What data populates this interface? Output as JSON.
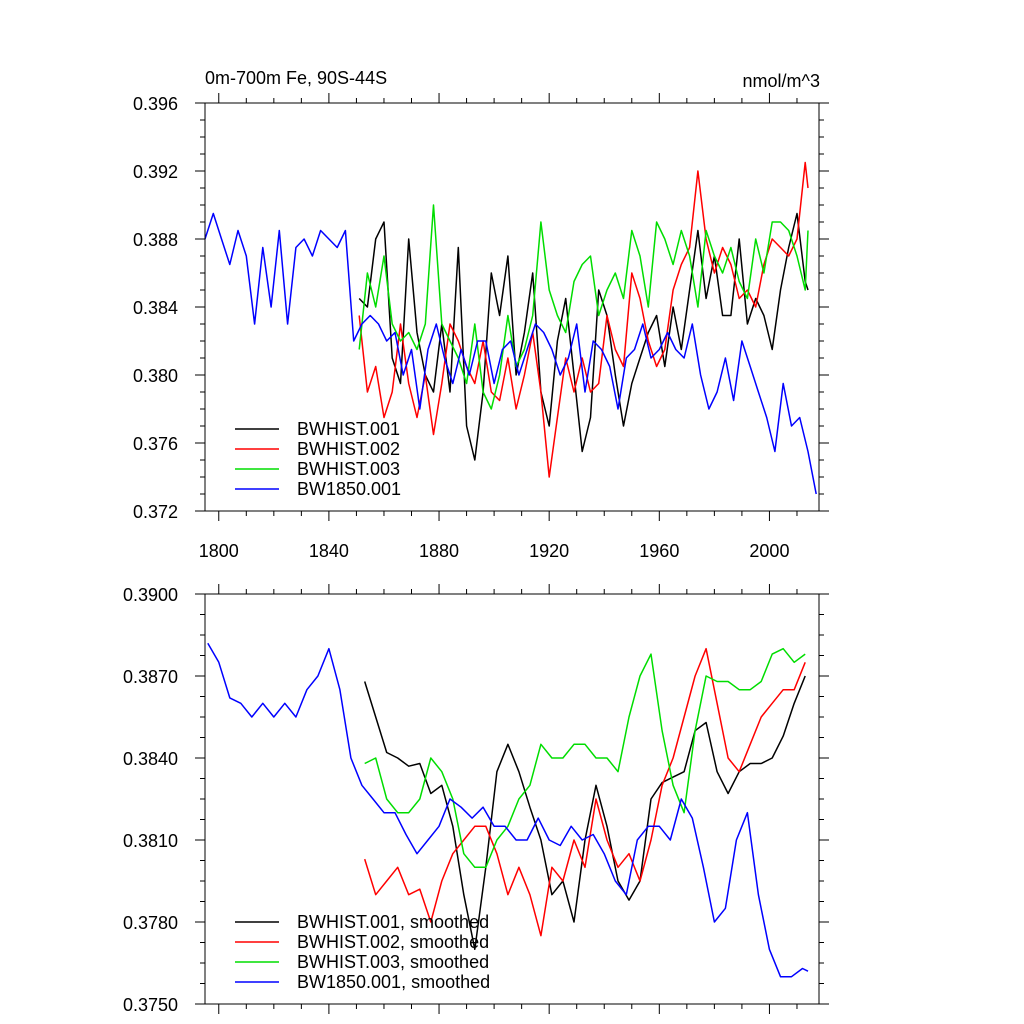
{
  "chart_data": [
    {
      "type": "line",
      "title_left": "0m-700m Fe, 90S-44S",
      "title_right": "nmol/m^3",
      "xlim": [
        1795,
        2018
      ],
      "ylim": [
        0.372,
        0.396
      ],
      "x_ticks": [
        1800,
        1840,
        1880,
        1920,
        1960,
        2000
      ],
      "y_ticks": [
        "0.372",
        "0.376",
        "0.380",
        "0.384",
        "0.388",
        "0.392",
        "0.396"
      ],
      "show_x_labels": true,
      "legend_position": "bottom-left",
      "series": [
        {
          "name": "BWHIST.001",
          "color": "#000000",
          "x": [
            1851,
            1854,
            1857,
            1860,
            1863,
            1866,
            1869,
            1872,
            1875,
            1878,
            1881,
            1884,
            1887,
            1890,
            1893,
            1896,
            1899,
            1902,
            1905,
            1908,
            1911,
            1914,
            1917,
            1920,
            1923,
            1926,
            1929,
            1932,
            1935,
            1938,
            1941,
            1944,
            1947,
            1950,
            1953,
            1956,
            1959,
            1962,
            1965,
            1968,
            1971,
            1974,
            1977,
            1980,
            1983,
            1986,
            1989,
            1992,
            1995,
            1998,
            2001,
            2004,
            2007,
            2010,
            2013,
            2014
          ],
          "y": [
            0.3845,
            0.384,
            0.388,
            0.389,
            0.381,
            0.3795,
            0.388,
            0.3825,
            0.38,
            0.379,
            0.383,
            0.379,
            0.3875,
            0.377,
            0.375,
            0.379,
            0.386,
            0.3835,
            0.387,
            0.38,
            0.3825,
            0.386,
            0.379,
            0.377,
            0.382,
            0.3845,
            0.38,
            0.3755,
            0.3775,
            0.385,
            0.3835,
            0.38,
            0.377,
            0.3795,
            0.381,
            0.3825,
            0.3835,
            0.3805,
            0.384,
            0.3815,
            0.385,
            0.3885,
            0.3845,
            0.387,
            0.3835,
            0.3835,
            0.388,
            0.383,
            0.3845,
            0.3835,
            0.3815,
            0.385,
            0.3875,
            0.3895,
            0.3855,
            0.385
          ]
        },
        {
          "name": "BWHIST.002",
          "color": "#ff0000",
          "x": [
            1851,
            1854,
            1857,
            1860,
            1863,
            1866,
            1869,
            1872,
            1875,
            1878,
            1881,
            1884,
            1887,
            1890,
            1893,
            1896,
            1899,
            1902,
            1905,
            1908,
            1911,
            1914,
            1917,
            1920,
            1923,
            1926,
            1929,
            1932,
            1935,
            1938,
            1941,
            1944,
            1947,
            1950,
            1953,
            1956,
            1959,
            1962,
            1965,
            1968,
            1971,
            1974,
            1977,
            1980,
            1983,
            1986,
            1989,
            1992,
            1995,
            1998,
            2001,
            2004,
            2007,
            2010,
            2013,
            2014
          ],
          "y": [
            0.3835,
            0.379,
            0.3805,
            0.3775,
            0.379,
            0.383,
            0.3795,
            0.3775,
            0.38,
            0.3765,
            0.3795,
            0.383,
            0.382,
            0.3805,
            0.3795,
            0.382,
            0.379,
            0.3785,
            0.381,
            0.378,
            0.38,
            0.3825,
            0.379,
            0.374,
            0.3775,
            0.381,
            0.379,
            0.381,
            0.379,
            0.3795,
            0.3835,
            0.3815,
            0.3805,
            0.386,
            0.3845,
            0.382,
            0.3805,
            0.3815,
            0.385,
            0.3865,
            0.3875,
            0.392,
            0.388,
            0.386,
            0.3875,
            0.3865,
            0.3845,
            0.385,
            0.384,
            0.3865,
            0.388,
            0.3875,
            0.387,
            0.388,
            0.3925,
            0.391
          ]
        },
        {
          "name": "BWHIST.003",
          "color": "#00dd00",
          "x": [
            1851,
            1854,
            1857,
            1860,
            1863,
            1866,
            1869,
            1872,
            1875,
            1878,
            1881,
            1884,
            1887,
            1890,
            1893,
            1896,
            1899,
            1902,
            1905,
            1908,
            1911,
            1914,
            1917,
            1920,
            1923,
            1926,
            1929,
            1932,
            1935,
            1938,
            1941,
            1944,
            1947,
            1950,
            1953,
            1956,
            1959,
            1962,
            1965,
            1968,
            1971,
            1974,
            1977,
            1980,
            1983,
            1986,
            1989,
            1992,
            1995,
            1998,
            2001,
            2004,
            2007,
            2010,
            2013,
            2014
          ],
          "y": [
            0.3815,
            0.386,
            0.384,
            0.387,
            0.383,
            0.382,
            0.3825,
            0.3815,
            0.383,
            0.39,
            0.383,
            0.382,
            0.381,
            0.3795,
            0.383,
            0.379,
            0.378,
            0.38,
            0.3835,
            0.3805,
            0.3815,
            0.3835,
            0.389,
            0.385,
            0.3835,
            0.3825,
            0.3855,
            0.3865,
            0.387,
            0.3835,
            0.385,
            0.386,
            0.3845,
            0.3885,
            0.387,
            0.384,
            0.389,
            0.388,
            0.3865,
            0.3885,
            0.387,
            0.384,
            0.3885,
            0.387,
            0.386,
            0.3875,
            0.3855,
            0.3845,
            0.388,
            0.386,
            0.389,
            0.389,
            0.3885,
            0.387,
            0.385,
            0.3885
          ]
        },
        {
          "name": "BW1850.001",
          "color": "#0000ff",
          "x": [
            1795,
            1798,
            1801,
            1804,
            1807,
            1810,
            1813,
            1816,
            1819,
            1822,
            1825,
            1828,
            1831,
            1834,
            1837,
            1840,
            1843,
            1846,
            1849,
            1852,
            1855,
            1858,
            1861,
            1864,
            1867,
            1870,
            1873,
            1876,
            1879,
            1882,
            1885,
            1888,
            1891,
            1894,
            1897,
            1900,
            1903,
            1906,
            1909,
            1912,
            1915,
            1918,
            1921,
            1924,
            1927,
            1930,
            1933,
            1936,
            1939,
            1942,
            1945,
            1948,
            1951,
            1954,
            1957,
            1960,
            1963,
            1966,
            1969,
            1972,
            1975,
            1978,
            1981,
            1984,
            1987,
            1990,
            1993,
            1996,
            1999,
            2002,
            2005,
            2008,
            2011,
            2014,
            2017
          ],
          "y": [
            0.388,
            0.3895,
            0.388,
            0.3865,
            0.3885,
            0.387,
            0.383,
            0.3875,
            0.384,
            0.3885,
            0.383,
            0.3875,
            0.388,
            0.387,
            0.3885,
            0.388,
            0.3875,
            0.3885,
            0.382,
            0.383,
            0.3835,
            0.383,
            0.382,
            0.3825,
            0.38,
            0.3815,
            0.378,
            0.3815,
            0.383,
            0.381,
            0.3795,
            0.3815,
            0.38,
            0.382,
            0.382,
            0.3795,
            0.3815,
            0.382,
            0.38,
            0.3815,
            0.383,
            0.3825,
            0.3815,
            0.38,
            0.381,
            0.383,
            0.379,
            0.382,
            0.3815,
            0.3805,
            0.378,
            0.381,
            0.3815,
            0.383,
            0.381,
            0.3815,
            0.3825,
            0.3815,
            0.381,
            0.383,
            0.38,
            0.378,
            0.379,
            0.381,
            0.3785,
            0.382,
            0.3805,
            0.379,
            0.3775,
            0.3755,
            0.3795,
            0.377,
            0.3775,
            0.3755,
            0.373
          ]
        }
      ]
    },
    {
      "type": "line",
      "xlim": [
        1795,
        2018
      ],
      "ylim": [
        0.375,
        0.39
      ],
      "x_ticks": [
        1800,
        1840,
        1880,
        1920,
        1960,
        2000
      ],
      "y_ticks": [
        "0.3750",
        "0.3780",
        "0.3810",
        "0.3840",
        "0.3870",
        "0.3900"
      ],
      "show_x_labels": false,
      "legend_position": "bottom-left",
      "series": [
        {
          "name": "BWHIST.001, smoothed",
          "color": "#000000",
          "x": [
            1853,
            1857,
            1861,
            1865,
            1869,
            1873,
            1877,
            1881,
            1885,
            1889,
            1893,
            1897,
            1901,
            1905,
            1909,
            1913,
            1917,
            1921,
            1925,
            1929,
            1933,
            1937,
            1941,
            1945,
            1949,
            1953,
            1957,
            1961,
            1965,
            1969,
            1973,
            1977,
            1981,
            1985,
            1989,
            1993,
            1997,
            2001,
            2005,
            2009,
            2013
          ],
          "y": [
            0.3868,
            0.3855,
            0.3842,
            0.384,
            0.3837,
            0.3838,
            0.3827,
            0.383,
            0.3815,
            0.379,
            0.377,
            0.38,
            0.3835,
            0.3845,
            0.3835,
            0.3822,
            0.381,
            0.379,
            0.3795,
            0.378,
            0.381,
            0.383,
            0.3815,
            0.3795,
            0.3788,
            0.3795,
            0.3825,
            0.3831,
            0.3833,
            0.3835,
            0.385,
            0.3853,
            0.3835,
            0.3827,
            0.3835,
            0.3838,
            0.3838,
            0.384,
            0.3848,
            0.386,
            0.387
          ]
        },
        {
          "name": "BWHIST.002, smoothed",
          "color": "#ff0000",
          "x": [
            1853,
            1857,
            1861,
            1865,
            1869,
            1873,
            1877,
            1881,
            1885,
            1889,
            1893,
            1897,
            1901,
            1905,
            1909,
            1913,
            1917,
            1921,
            1925,
            1929,
            1933,
            1937,
            1941,
            1945,
            1949,
            1953,
            1957,
            1961,
            1965,
            1969,
            1973,
            1977,
            1981,
            1985,
            1989,
            1993,
            1997,
            2001,
            2005,
            2009,
            2013
          ],
          "y": [
            0.3803,
            0.379,
            0.3795,
            0.38,
            0.379,
            0.3792,
            0.378,
            0.3795,
            0.3805,
            0.381,
            0.3815,
            0.3815,
            0.3805,
            0.379,
            0.38,
            0.379,
            0.3775,
            0.38,
            0.3795,
            0.381,
            0.38,
            0.3825,
            0.381,
            0.38,
            0.3805,
            0.3795,
            0.381,
            0.383,
            0.384,
            0.3855,
            0.387,
            0.388,
            0.386,
            0.384,
            0.3835,
            0.3845,
            0.3855,
            0.386,
            0.3865,
            0.3865,
            0.3875
          ]
        },
        {
          "name": "BWHIST.003, smoothed",
          "color": "#00dd00",
          "x": [
            1853,
            1857,
            1861,
            1865,
            1869,
            1873,
            1877,
            1881,
            1885,
            1889,
            1893,
            1897,
            1901,
            1905,
            1909,
            1913,
            1917,
            1921,
            1925,
            1929,
            1933,
            1937,
            1941,
            1945,
            1949,
            1953,
            1957,
            1961,
            1965,
            1969,
            1973,
            1977,
            1981,
            1985,
            1989,
            1993,
            1997,
            2001,
            2005,
            2009,
            2013
          ],
          "y": [
            0.3838,
            0.384,
            0.3825,
            0.382,
            0.382,
            0.3825,
            0.384,
            0.3835,
            0.3825,
            0.3805,
            0.38,
            0.38,
            0.381,
            0.3815,
            0.3825,
            0.383,
            0.3845,
            0.384,
            0.384,
            0.3845,
            0.3845,
            0.384,
            0.384,
            0.3835,
            0.3855,
            0.387,
            0.3878,
            0.385,
            0.383,
            0.382,
            0.385,
            0.387,
            0.3868,
            0.3868,
            0.3865,
            0.3865,
            0.3868,
            0.3878,
            0.388,
            0.3875,
            0.3878
          ]
        },
        {
          "name": "BW1850.001, smoothed",
          "color": "#0000ff",
          "x": [
            1796,
            1800,
            1804,
            1808,
            1812,
            1816,
            1820,
            1824,
            1828,
            1832,
            1836,
            1840,
            1844,
            1848,
            1852,
            1856,
            1860,
            1864,
            1868,
            1872,
            1876,
            1880,
            1884,
            1888,
            1892,
            1896,
            1900,
            1904,
            1908,
            1912,
            1916,
            1920,
            1924,
            1928,
            1932,
            1936,
            1940,
            1944,
            1948,
            1952,
            1956,
            1960,
            1964,
            1968,
            1972,
            1976,
            1980,
            1984,
            1988,
            1992,
            1996,
            2000,
            2004,
            2008,
            2012,
            2014
          ],
          "y": [
            0.3882,
            0.3875,
            0.3862,
            0.386,
            0.3855,
            0.386,
            0.3855,
            0.386,
            0.3855,
            0.3865,
            0.387,
            0.388,
            0.3865,
            0.384,
            0.383,
            0.3825,
            0.382,
            0.382,
            0.3812,
            0.3805,
            0.381,
            0.3815,
            0.3825,
            0.3822,
            0.3818,
            0.3822,
            0.3815,
            0.3815,
            0.381,
            0.381,
            0.3818,
            0.381,
            0.3808,
            0.3815,
            0.381,
            0.3812,
            0.3805,
            0.3795,
            0.379,
            0.381,
            0.3815,
            0.3815,
            0.381,
            0.3825,
            0.3818,
            0.38,
            0.378,
            0.3785,
            0.381,
            0.382,
            0.379,
            0.377,
            0.376,
            0.376,
            0.3763,
            0.3762
          ]
        }
      ]
    }
  ]
}
